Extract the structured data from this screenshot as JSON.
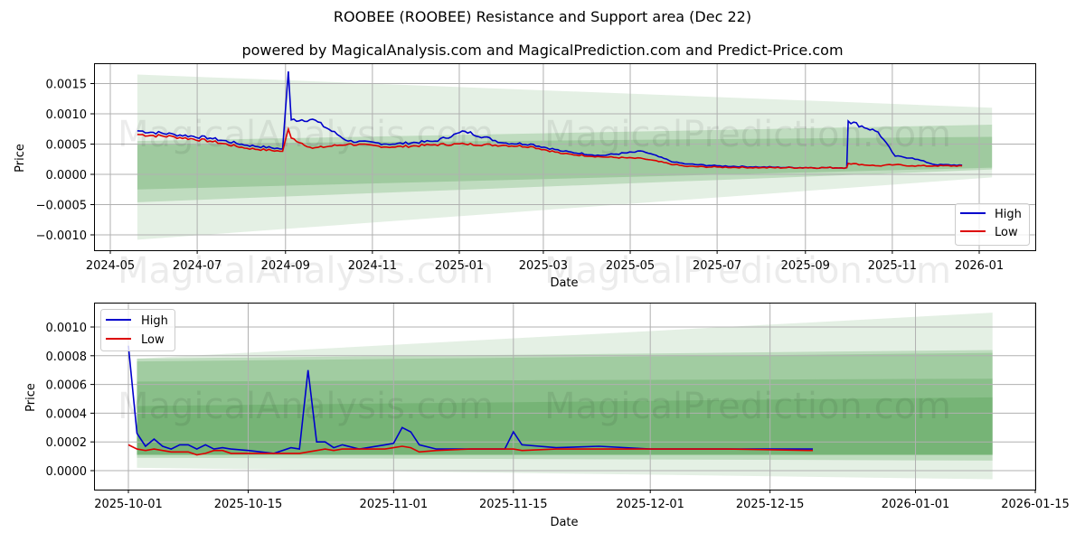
{
  "title": "ROOBEE (ROOBEE) Resistance and Support area (Dec 22)",
  "subtitle": "powered by MagicalAnalysis.com and MagicalPrediction.com and Predict-Price.com",
  "watermark": [
    "MagicalAnalysis.com",
    "MagicalPrediction.com"
  ],
  "colors": {
    "high": "#0000cc",
    "low": "#dd0000",
    "band": "#2e8b2e",
    "grid": "#b0b0b0"
  },
  "chart_data": [
    {
      "type": "line",
      "title": "",
      "xlabel": "Date",
      "ylabel": "Price",
      "ylim": [
        -0.00125,
        0.00182
      ],
      "grid": true,
      "legend_position": "lower right",
      "xticks": [
        "2024-05",
        "2024-07",
        "2024-09",
        "2024-11",
        "2025-01",
        "2025-03",
        "2025-05",
        "2025-07",
        "2025-09",
        "2025-11",
        "2026-01"
      ],
      "yticks": [
        "0.0015",
        "0.0010",
        "0.0005",
        "0.0000",
        "−0.0005",
        "−0.0010"
      ],
      "x": [
        "2024-05-20",
        "2024-06-15",
        "2024-07-10",
        "2024-08-05",
        "2024-08-30",
        "2024-09-03",
        "2024-09-05",
        "2024-09-20",
        "2024-10-15",
        "2024-11-15",
        "2024-12-15",
        "2025-01-05",
        "2025-02-01",
        "2025-02-20",
        "2025-03-15",
        "2025-04-10",
        "2025-05-10",
        "2025-06-01",
        "2025-06-10",
        "2025-07-01",
        "2025-08-01",
        "2025-09-01",
        "2025-09-30",
        "2025-10-01",
        "2025-10-22",
        "2025-11-03",
        "2025-11-15",
        "2025-12-01",
        "2025-12-20"
      ],
      "series": [
        {
          "name": "High",
          "values": [
            0.00072,
            0.00066,
            0.0006,
            0.00048,
            0.00042,
            0.0017,
            0.0009,
            0.00091,
            0.00055,
            0.0005,
            0.00055,
            0.00071,
            0.00052,
            0.0005,
            0.00038,
            0.00031,
            0.00038,
            0.0002,
            0.00017,
            0.00014,
            0.00012,
            0.00011,
            0.00011,
            0.00088,
            0.0007,
            0.0003,
            0.00027,
            0.00016,
            0.00015
          ]
        },
        {
          "name": "Low",
          "values": [
            0.00066,
            0.00062,
            0.00055,
            0.00043,
            0.00038,
            0.00075,
            0.0006,
            0.00043,
            0.0005,
            0.00045,
            0.00049,
            0.0005,
            0.00048,
            0.00046,
            0.00034,
            0.00029,
            0.00026,
            0.00016,
            0.00013,
            0.00012,
            0.00011,
            0.00011,
            0.00011,
            0.00018,
            0.00014,
            0.00016,
            0.00014,
            0.00014,
            0.00014
          ]
        }
      ],
      "bands": [
        {
          "name": "outer",
          "start": {
            "date": "2024-05-20",
            "low": -0.00108,
            "high": 0.00165
          },
          "end": {
            "date": "2026-01-10",
            "low": -5e-05,
            "high": 0.0011
          }
        },
        {
          "name": "mid",
          "start": {
            "date": "2024-05-20",
            "low": -0.00046,
            "high": 0.00055
          },
          "end": {
            "date": "2026-01-10",
            "low": 8e-05,
            "high": 0.00082
          }
        },
        {
          "name": "inner",
          "start": {
            "date": "2024-05-20",
            "low": -0.00025,
            "high": 0.0005
          },
          "end": {
            "date": "2026-01-10",
            "low": 0.00011,
            "high": 0.00062
          }
        }
      ]
    },
    {
      "type": "line",
      "title": "",
      "xlabel": "Date",
      "ylabel": "Price",
      "ylim": [
        -0.00013,
        0.00115
      ],
      "grid": true,
      "legend_position": "upper left",
      "xticks": [
        "2025-10-01",
        "2025-10-15",
        "2025-11-01",
        "2025-11-15",
        "2025-12-01",
        "2025-12-15",
        "2026-01-01",
        "2026-01-15"
      ],
      "yticks": [
        "0.0010",
        "0.0008",
        "0.0006",
        "0.0004",
        "0.0002",
        "0.0000"
      ],
      "x": [
        "10-01",
        "10-02",
        "10-03",
        "10-04",
        "10-05",
        "10-06",
        "10-07",
        "10-08",
        "10-09",
        "10-10",
        "10-11",
        "10-12",
        "10-13",
        "10-15",
        "10-18",
        "10-20",
        "10-21",
        "10-22",
        "10-23",
        "10-24",
        "10-25",
        "10-26",
        "10-28",
        "10-31",
        "11-01",
        "11-02",
        "11-03",
        "11-04",
        "11-06",
        "11-10",
        "11-14",
        "11-15",
        "11-16",
        "11-20",
        "11-25",
        "12-01",
        "12-10",
        "12-20"
      ],
      "series": [
        {
          "name": "High",
          "values": [
            0.00087,
            0.00026,
            0.00017,
            0.00022,
            0.00017,
            0.00015,
            0.00018,
            0.00018,
            0.00015,
            0.00018,
            0.00015,
            0.00016,
            0.00015,
            0.00014,
            0.00012,
            0.00016,
            0.00015,
            0.0007,
            0.0002,
            0.0002,
            0.00016,
            0.00018,
            0.00015,
            0.00018,
            0.00019,
            0.0003,
            0.00027,
            0.00018,
            0.00015,
            0.00015,
            0.00015,
            0.00027,
            0.00018,
            0.00016,
            0.00017,
            0.00015,
            0.00015,
            0.00015
          ]
        },
        {
          "name": "Low",
          "values": [
            0.00018,
            0.00015,
            0.00014,
            0.00015,
            0.00014,
            0.00013,
            0.00013,
            0.00013,
            0.00011,
            0.00012,
            0.00014,
            0.00014,
            0.00012,
            0.00012,
            0.00012,
            0.00012,
            0.00012,
            0.00013,
            0.00014,
            0.00015,
            0.00014,
            0.00015,
            0.00015,
            0.00015,
            0.00016,
            0.00017,
            0.00016,
            0.00013,
            0.00014,
            0.00015,
            0.00015,
            0.00015,
            0.00014,
            0.00015,
            0.00015,
            0.00015,
            0.00015,
            0.00014
          ]
        }
      ]
    }
  ],
  "legend": {
    "high": "High",
    "low": "Low"
  }
}
